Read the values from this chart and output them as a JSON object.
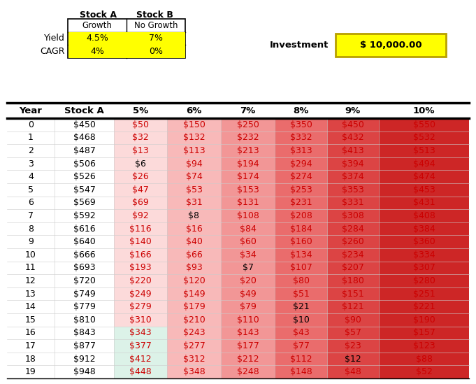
{
  "investment": "$ 10,000.00",
  "stock_a_label": "Stock A",
  "stock_b_label": "Stock B",
  "growth_label": "Growth",
  "no_growth_label": "No Growth",
  "yield_label": "Yield",
  "cagr_label": "CAGR",
  "stock_a_yield": "4.5%",
  "stock_a_cagr": "4%",
  "stock_b_yield": "7%",
  "stock_b_cagr": "0%",
  "col_headers": [
    "Year",
    "Stock A",
    "5%",
    "6%",
    "7%",
    "8%",
    "9%",
    "10%"
  ],
  "years": [
    0,
    1,
    2,
    3,
    4,
    5,
    6,
    7,
    8,
    9,
    10,
    11,
    12,
    13,
    14,
    15,
    16,
    17,
    18,
    19
  ],
  "stock_a": [
    450,
    468,
    487,
    506,
    526,
    547,
    569,
    592,
    616,
    640,
    666,
    693,
    720,
    749,
    779,
    810,
    843,
    877,
    912,
    948
  ],
  "pct5": [
    50,
    32,
    13,
    6,
    26,
    47,
    69,
    92,
    116,
    140,
    166,
    193,
    220,
    249,
    279,
    310,
    343,
    377,
    412,
    448
  ],
  "pct6": [
    150,
    132,
    113,
    94,
    74,
    53,
    31,
    8,
    16,
    40,
    66,
    93,
    120,
    149,
    179,
    210,
    243,
    277,
    312,
    348
  ],
  "pct7": [
    250,
    232,
    213,
    194,
    174,
    153,
    131,
    108,
    84,
    60,
    34,
    7,
    20,
    49,
    79,
    110,
    143,
    177,
    212,
    248
  ],
  "pct8": [
    350,
    332,
    313,
    294,
    274,
    253,
    231,
    208,
    184,
    160,
    134,
    107,
    80,
    51,
    21,
    10,
    43,
    77,
    112,
    148
  ],
  "pct9": [
    450,
    432,
    413,
    394,
    374,
    353,
    331,
    308,
    284,
    260,
    234,
    207,
    180,
    151,
    121,
    90,
    57,
    23,
    12,
    48
  ],
  "pct10": [
    550,
    532,
    513,
    494,
    474,
    453,
    431,
    408,
    384,
    360,
    334,
    307,
    280,
    251,
    221,
    190,
    157,
    123,
    88,
    52
  ],
  "yellow_fill": "#ffff00",
  "fig_bg": "#ffffff",
  "text_red": "#cc0000",
  "text_black": "#000000",
  "col_bg_5": [
    252,
    218,
    218
  ],
  "col_bg_6": [
    248,
    185,
    185
  ],
  "col_bg_7": [
    242,
    150,
    150
  ],
  "col_bg_8": [
    234,
    108,
    108
  ],
  "col_bg_9": [
    220,
    68,
    68
  ],
  "col_bg_10": [
    205,
    38,
    38
  ],
  "green_bg": [
    220,
    242,
    232
  ],
  "black_cells": {
    "0": [
      3
    ],
    "1": [
      7
    ],
    "2": [
      11
    ],
    "3": [
      14,
      15
    ],
    "4": [
      18
    ],
    "5": []
  }
}
